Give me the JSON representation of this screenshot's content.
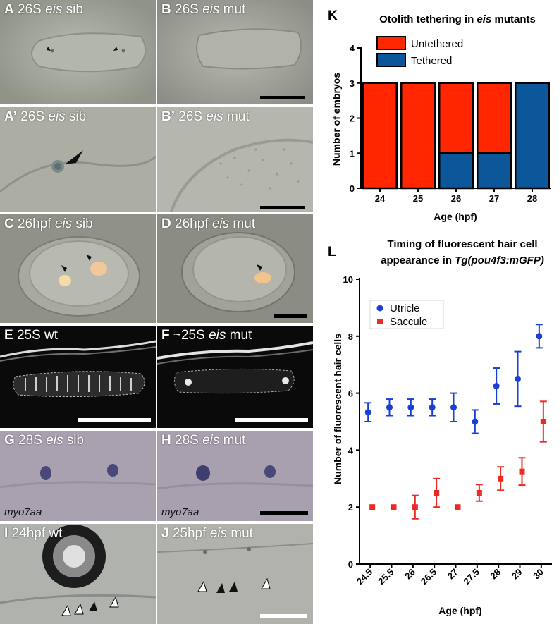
{
  "panels": {
    "A": {
      "letter": "A",
      "pre": " 26S ",
      "italic": "eis",
      "post": " sib"
    },
    "B": {
      "letter": "B",
      "pre": " 26S ",
      "italic": "eis",
      "post": " mut"
    },
    "A2": {
      "letter": "A’",
      "pre": " 26S ",
      "italic": "eis",
      "post": " sib"
    },
    "B2": {
      "letter": "B’",
      "pre": " 26S ",
      "italic": "eis",
      "post": " mut"
    },
    "C": {
      "letter": "C",
      "pre": " 26hpf ",
      "italic": "eis",
      "post": " sib"
    },
    "D": {
      "letter": "D",
      "pre": " 26hpf ",
      "italic": "eis",
      "post": " mut"
    },
    "E": {
      "letter": "E",
      "pre": " 25S wt",
      "italic": "",
      "post": ""
    },
    "F": {
      "letter": "F",
      "pre": " ~25S ",
      "italic": "eis",
      "post": " mut"
    },
    "G": {
      "letter": "G",
      "pre": " 28S ",
      "italic": "eis",
      "post": " sib",
      "gene": "myo7aa"
    },
    "H": {
      "letter": "H",
      "pre": " 28S ",
      "italic": "eis",
      "post": " mut",
      "gene": "myo7aa"
    },
    "I": {
      "letter": "I",
      "pre": " 24hpf wt",
      "italic": "",
      "post": ""
    },
    "J": {
      "letter": "J",
      "pre": " 25hpf ",
      "italic": "eis",
      "post": " mut"
    }
  },
  "chart_data": [
    {
      "panel_letter": "K",
      "type": "bar",
      "stacked": true,
      "title_pre": "Otolith tethering in ",
      "title_italic": "eis",
      "title_post": " mutants",
      "xlabel": "Age (hpf)",
      "ylabel": "Number of embryos",
      "categories": [
        "24",
        "25",
        "26",
        "27",
        "28"
      ],
      "ylim": [
        0,
        4
      ],
      "yticks": [
        0,
        1,
        2,
        3,
        4
      ],
      "legend_position": "top-right",
      "series": [
        {
          "name": "Tethered",
          "color": "#0c5799",
          "values": [
            0,
            0,
            1,
            1,
            3
          ]
        },
        {
          "name": "Untethered",
          "color": "#ff2600",
          "values": [
            3,
            3,
            2,
            2,
            0
          ]
        }
      ]
    },
    {
      "panel_letter": "L",
      "type": "scatter",
      "title_line1": "Timing of fluorescent hair cell",
      "title_line2_pre": "appearance in ",
      "title_line2_italic": "Tg(pou4f3:mGFP)",
      "xlabel": "Age (hpf)",
      "ylabel": "Number of fluorescent hair cells",
      "categories": [
        "24.5",
        "25.5",
        "26",
        "26.5",
        "27",
        "27.5",
        "28",
        "29",
        "30"
      ],
      "ylim": [
        0,
        10
      ],
      "yticks": [
        0,
        2,
        4,
        6,
        8,
        10
      ],
      "legend_position": "top-left",
      "series": [
        {
          "name": "Utricle",
          "color": "#1a3fd6",
          "marker": "circle",
          "values": [
            5.33,
            5.5,
            5.5,
            5.5,
            5.5,
            5.0,
            6.25,
            6.5,
            8.0
          ],
          "error": [
            0.33,
            0.29,
            0.29,
            0.29,
            0.5,
            0.41,
            0.63,
            0.96,
            0.41
          ]
        },
        {
          "name": "Saccule",
          "color": "#ee2a24",
          "marker": "square",
          "values": [
            2.0,
            2.0,
            2.0,
            2.5,
            2.0,
            2.5,
            3.0,
            3.25,
            5.0
          ],
          "error": [
            0,
            0,
            0.41,
            0.5,
            0,
            0.29,
            0.41,
            0.48,
            0.71
          ]
        }
      ]
    }
  ]
}
